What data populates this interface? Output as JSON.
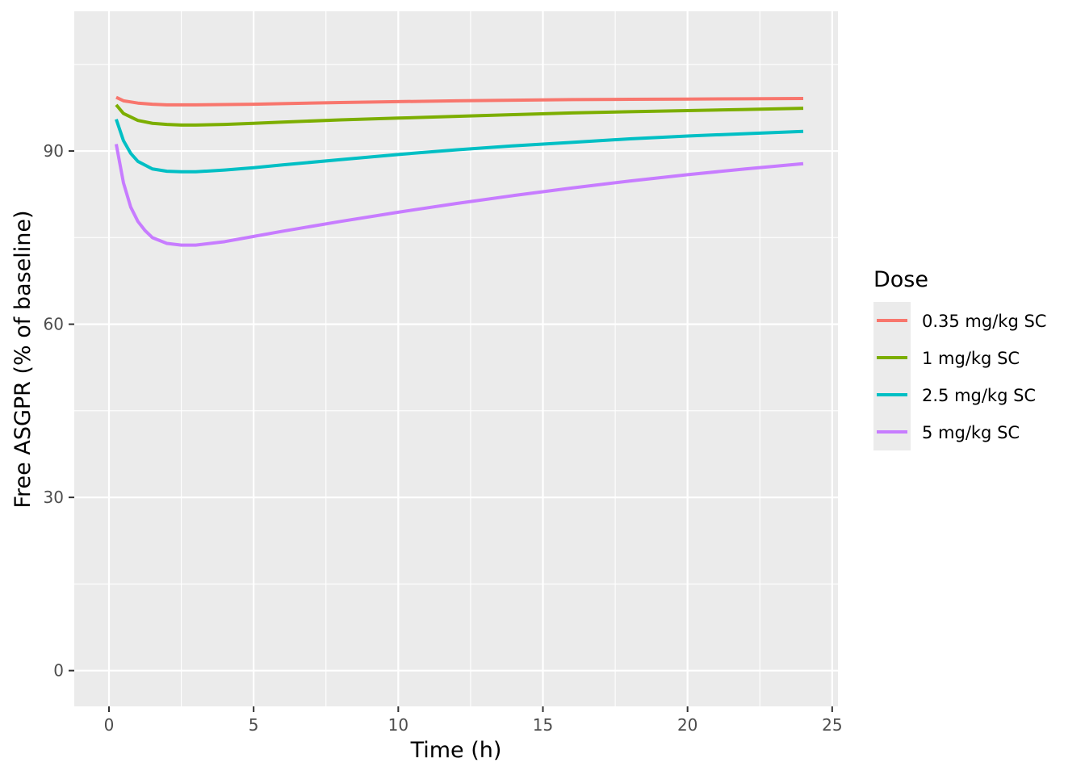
{
  "chart_data": {
    "type": "line",
    "xlabel": "Time (h)",
    "ylabel": "Free ASGPR (% of baseline)",
    "xlim": [
      -1.2,
      25.2
    ],
    "ylim": [
      -6.2,
      114.2
    ],
    "x_ticks": [
      0,
      5,
      10,
      15,
      20,
      25
    ],
    "y_ticks": [
      0,
      30,
      60,
      90
    ],
    "x_tick_labels": [
      "0",
      "5",
      "10",
      "15",
      "20",
      "25"
    ],
    "y_tick_labels": [
      "0",
      "30",
      "60",
      "90"
    ],
    "grid": true,
    "background": "#ebebeb",
    "legend": {
      "title": "Dose",
      "placement": "right"
    },
    "series": [
      {
        "name": "0.35 mg/kg SC",
        "color": "#F8766D",
        "x": [
          0.25,
          0.5,
          1,
          1.5,
          2,
          2.5,
          3,
          4,
          5,
          6,
          8,
          10,
          12,
          14,
          16,
          18,
          20,
          22,
          24
        ],
        "y": [
          99.3,
          98.7,
          98.3,
          98.1,
          98.0,
          98.0,
          98.0,
          98.05,
          98.1,
          98.2,
          98.4,
          98.55,
          98.7,
          98.8,
          98.9,
          98.95,
          99.0,
          99.05,
          99.1
        ]
      },
      {
        "name": "1 mg/kg SC",
        "color": "#7CAE00",
        "x": [
          0.25,
          0.5,
          1,
          1.5,
          2,
          2.5,
          3,
          4,
          5,
          6,
          8,
          10,
          12,
          14,
          16,
          18,
          20,
          22,
          24
        ],
        "y": [
          98.0,
          96.5,
          95.3,
          94.8,
          94.6,
          94.5,
          94.5,
          94.6,
          94.8,
          95.0,
          95.4,
          95.7,
          96.0,
          96.3,
          96.6,
          96.8,
          97.0,
          97.2,
          97.4
        ]
      },
      {
        "name": "2.5 mg/kg SC",
        "color": "#00BFC4",
        "x": [
          0.25,
          0.5,
          0.75,
          1,
          1.5,
          2,
          2.5,
          3,
          4,
          5,
          6,
          8,
          10,
          12,
          14,
          16,
          18,
          20,
          22,
          24
        ],
        "y": [
          95.5,
          91.8,
          89.6,
          88.2,
          86.9,
          86.5,
          86.4,
          86.4,
          86.7,
          87.1,
          87.6,
          88.5,
          89.4,
          90.2,
          90.9,
          91.5,
          92.1,
          92.6,
          93.0,
          93.4
        ]
      },
      {
        "name": "5 mg/kg SC",
        "color": "#C77CFF",
        "x": [
          0.25,
          0.5,
          0.75,
          1,
          1.25,
          1.5,
          2,
          2.5,
          3,
          4,
          5,
          6,
          8,
          10,
          12,
          14,
          16,
          18,
          20,
          22,
          24
        ],
        "y": [
          91.2,
          84.5,
          80.3,
          77.8,
          76.2,
          75.0,
          74.0,
          73.7,
          73.7,
          74.3,
          75.2,
          76.1,
          77.8,
          79.4,
          80.9,
          82.3,
          83.6,
          84.8,
          85.9,
          86.9,
          87.8
        ]
      }
    ]
  }
}
